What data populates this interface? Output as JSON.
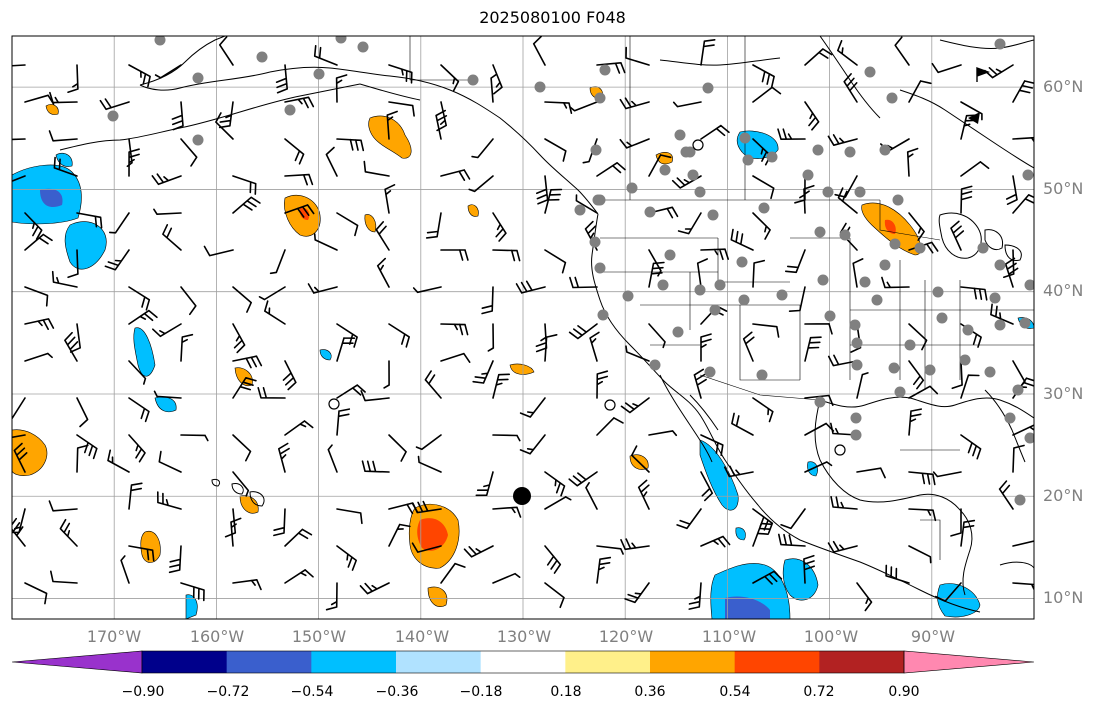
{
  "title": "2025080100 F048",
  "map": {
    "lon_range": [
      -180,
      -80
    ],
    "lat_range": [
      8,
      65
    ],
    "lat_labels": [
      "10°N",
      "20°N",
      "30°N",
      "40°N",
      "50°N",
      "60°N"
    ],
    "lon_labels": [
      "170°W",
      "160°W",
      "150°W",
      "140°W",
      "130°W",
      "120°W",
      "110°W",
      "100°W",
      "90°W"
    ],
    "gridline_color": "#a0a0a0",
    "coast_color": "#000000",
    "station_color": "#808080"
  },
  "colorbar": {
    "ticks": [
      "−0.90",
      "−0.72",
      "−0.54",
      "−0.36",
      "−0.18",
      "0.18",
      "0.36",
      "0.54",
      "0.72",
      "0.90"
    ],
    "colors": [
      "#9932cc",
      "#00008b",
      "#3a5fcd",
      "#00bfff",
      "#b0e2ff",
      "#ffffff",
      "#fff08a",
      "#ffa500",
      "#ff4500",
      "#b22222",
      "#ff88b0"
    ]
  }
}
